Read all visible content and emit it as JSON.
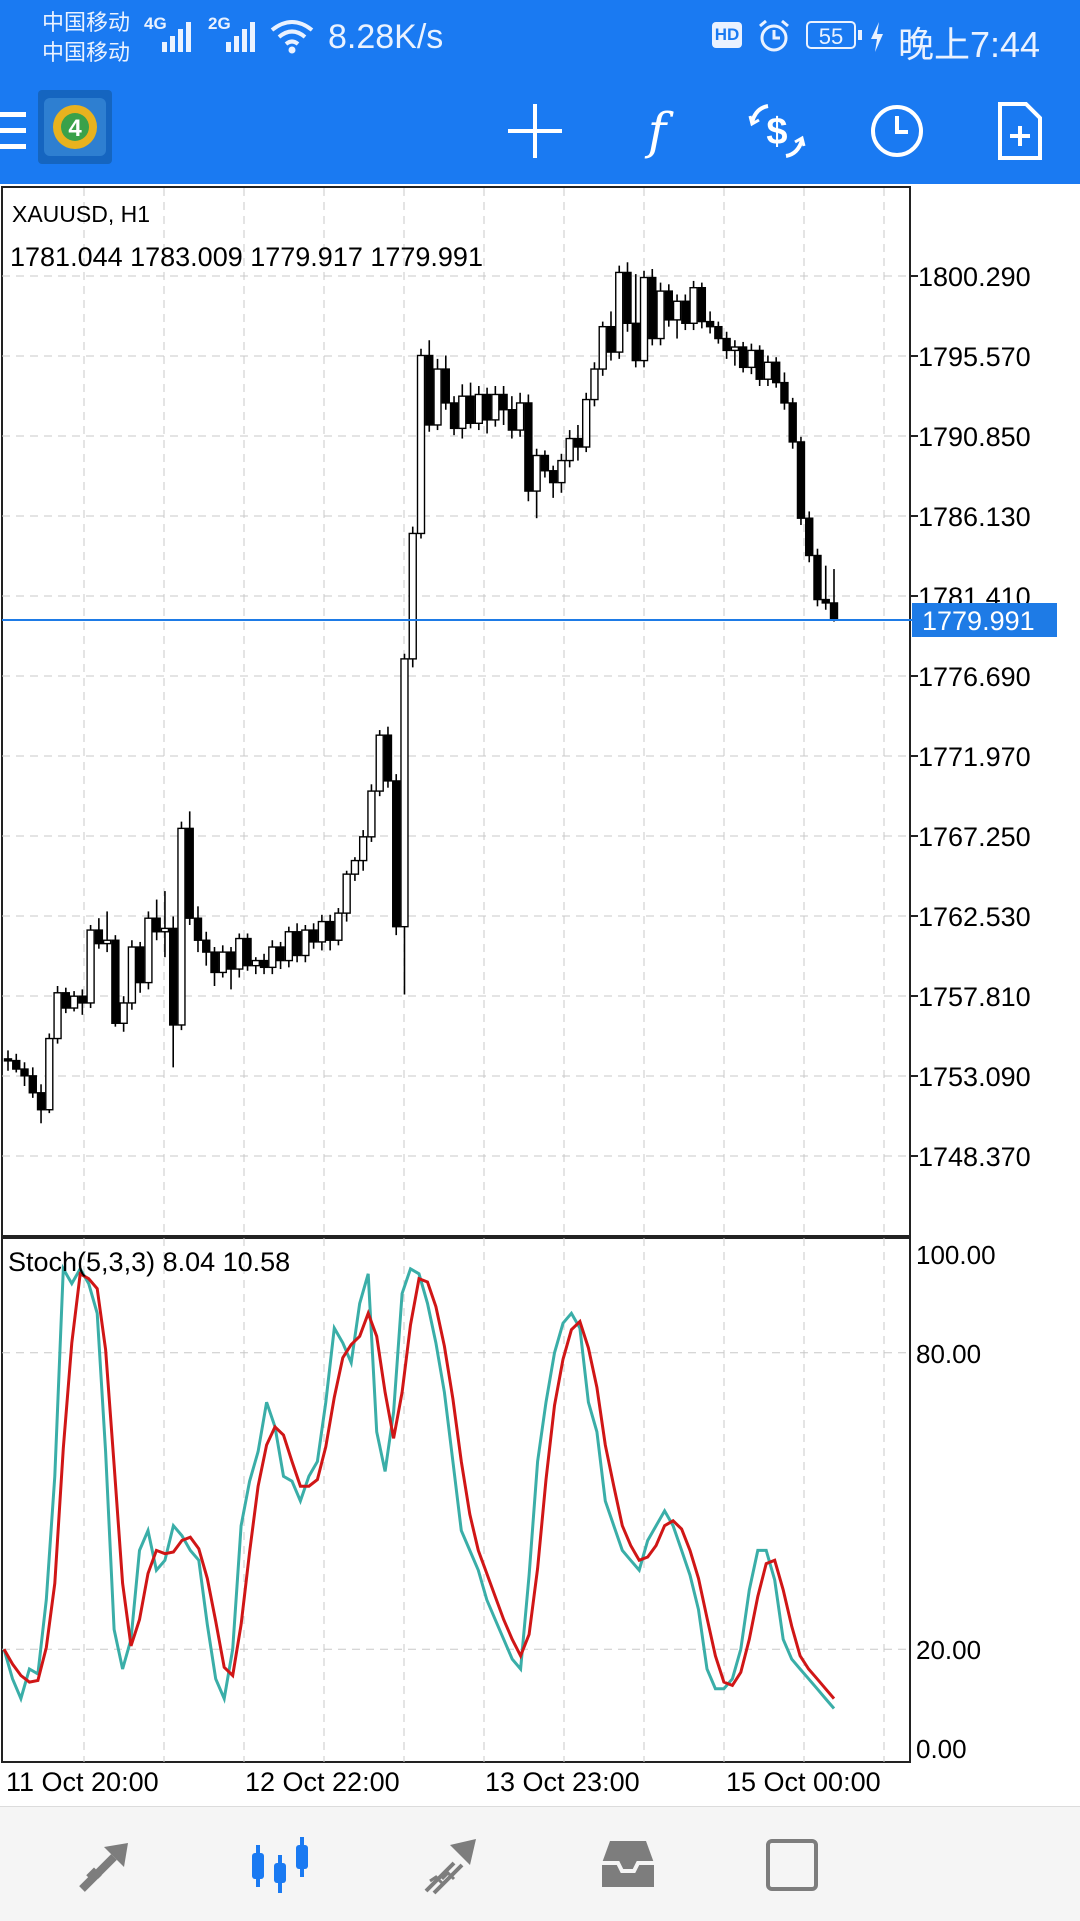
{
  "status_bar": {
    "carrier_1": "中国移动",
    "carrier_2": "中国移动",
    "signal_1": "4G",
    "signal_2": "2G",
    "net_speed": "8.28K/s",
    "hd_badge": "HD",
    "battery": "55",
    "time": "晚上7:44"
  },
  "toolbar": {
    "icons": [
      "menu-icon",
      "app-logo",
      "crosshair-icon",
      "function-icon",
      "trade-icon",
      "clock-icon",
      "new-document-icon"
    ]
  },
  "chart": {
    "symbol_label": "XAUUSD, H1",
    "ohlc_label": "1781.044 1783.009 1779.917 1779.991",
    "current_price": "1779.991",
    "price_ticks": [
      "1800.290",
      "1795.570",
      "1790.850",
      "1786.130",
      "1781.410",
      "1776.690",
      "1771.970",
      "1767.250",
      "1762.530",
      "1757.810",
      "1753.090",
      "1748.370"
    ],
    "indicator_label": "Stoch(5,3,3) 8.04 10.58",
    "stoch_ticks": [
      "100.00",
      "80.00",
      "20.00",
      "0.00"
    ],
    "time_labels": [
      "11 Oct 20:00",
      "12 Oct 22:00",
      "13 Oct 23:00",
      "15 Oct 00:00"
    ],
    "colors": {
      "up_down": "#000000",
      "price_line": "#1e7be6",
      "stoch_main": "#3aaea8",
      "stoch_signal": "#d01616"
    }
  },
  "chart_data": {
    "type": "candlestick",
    "symbol": "XAUUSD",
    "timeframe": "H1",
    "ylim": [
      1744,
      1804
    ],
    "candles": [
      [
        1754.1,
        1754.6,
        1753.4,
        1754.0
      ],
      [
        1754.0,
        1754.4,
        1753.3,
        1753.5
      ],
      [
        1753.5,
        1753.9,
        1752.5,
        1753.1
      ],
      [
        1753.1,
        1753.6,
        1751.8,
        1752.1
      ],
      [
        1752.1,
        1752.6,
        1750.3,
        1751.1
      ],
      [
        1751.1,
        1755.6,
        1750.9,
        1755.3
      ],
      [
        1755.3,
        1758.4,
        1755.0,
        1758.0
      ],
      [
        1758.0,
        1758.3,
        1756.8,
        1757.1
      ],
      [
        1757.1,
        1758.1,
        1756.9,
        1757.8
      ],
      [
        1757.8,
        1758.2,
        1756.7,
        1757.4
      ],
      [
        1757.4,
        1762.0,
        1757.1,
        1761.7
      ],
      [
        1761.7,
        1762.4,
        1760.6,
        1760.9
      ],
      [
        1760.9,
        1762.8,
        1760.4,
        1761.1
      ],
      [
        1761.1,
        1761.4,
        1756.0,
        1756.2
      ],
      [
        1756.2,
        1757.8,
        1755.7,
        1757.4
      ],
      [
        1757.4,
        1761.1,
        1757.0,
        1760.7
      ],
      [
        1760.7,
        1761.0,
        1758.0,
        1758.6
      ],
      [
        1758.6,
        1762.8,
        1758.2,
        1762.4
      ],
      [
        1762.4,
        1763.5,
        1761.1,
        1761.6
      ],
      [
        1761.6,
        1764.0,
        1760.1,
        1761.8
      ],
      [
        1761.8,
        1762.5,
        1753.6,
        1756.1
      ],
      [
        1756.1,
        1768.1,
        1755.8,
        1767.7
      ],
      [
        1767.7,
        1768.7,
        1762.0,
        1762.4
      ],
      [
        1762.4,
        1763.1,
        1760.4,
        1761.1
      ],
      [
        1761.1,
        1761.6,
        1759.6,
        1760.4
      ],
      [
        1760.4,
        1760.7,
        1758.4,
        1759.2
      ],
      [
        1759.2,
        1760.8,
        1758.9,
        1760.4
      ],
      [
        1760.4,
        1760.7,
        1758.2,
        1759.4
      ],
      [
        1759.4,
        1761.5,
        1758.9,
        1761.2
      ],
      [
        1761.2,
        1761.5,
        1759.3,
        1759.6
      ],
      [
        1759.6,
        1760.1,
        1759.1,
        1759.9
      ],
      [
        1759.9,
        1760.3,
        1759.1,
        1759.5
      ],
      [
        1759.5,
        1761.1,
        1759.1,
        1760.7
      ],
      [
        1760.7,
        1761.0,
        1759.4,
        1759.9
      ],
      [
        1759.9,
        1761.9,
        1759.5,
        1761.6
      ],
      [
        1761.6,
        1762.1,
        1759.8,
        1760.2
      ],
      [
        1760.2,
        1762.0,
        1759.8,
        1761.7
      ],
      [
        1761.7,
        1762.1,
        1760.6,
        1761.0
      ],
      [
        1761.0,
        1762.6,
        1760.5,
        1762.2
      ],
      [
        1762.2,
        1762.6,
        1760.5,
        1761.1
      ],
      [
        1761.1,
        1763.0,
        1760.8,
        1762.7
      ],
      [
        1762.7,
        1765.2,
        1762.2,
        1765.0
      ],
      [
        1765.0,
        1766.0,
        1764.6,
        1765.8
      ],
      [
        1765.8,
        1767.6,
        1765.2,
        1767.2
      ],
      [
        1767.2,
        1770.3,
        1766.9,
        1769.9
      ],
      [
        1769.9,
        1773.5,
        1769.6,
        1773.2
      ],
      [
        1773.2,
        1773.7,
        1770.1,
        1770.5
      ],
      [
        1770.5,
        1770.9,
        1761.4,
        1761.9
      ],
      [
        1761.9,
        1778.0,
        1757.9,
        1777.7
      ],
      [
        1777.7,
        1785.5,
        1777.2,
        1785.1
      ],
      [
        1785.1,
        1796.0,
        1784.8,
        1795.6
      ],
      [
        1795.6,
        1796.5,
        1791.1,
        1791.5
      ],
      [
        1791.5,
        1795.4,
        1791.2,
        1794.8
      ],
      [
        1794.8,
        1795.6,
        1792.4,
        1792.8
      ],
      [
        1792.8,
        1793.2,
        1790.9,
        1791.3
      ],
      [
        1791.3,
        1793.9,
        1790.7,
        1793.2
      ],
      [
        1793.2,
        1794.0,
        1791.3,
        1791.6
      ],
      [
        1791.6,
        1793.8,
        1791.2,
        1793.3
      ],
      [
        1793.3,
        1793.7,
        1791.0,
        1791.8
      ],
      [
        1791.8,
        1793.8,
        1791.4,
        1793.3
      ],
      [
        1793.3,
        1793.8,
        1791.5,
        1792.4
      ],
      [
        1792.4,
        1793.2,
        1790.7,
        1791.2
      ],
      [
        1791.2,
        1793.4,
        1790.8,
        1792.8
      ],
      [
        1792.8,
        1793.3,
        1787.0,
        1787.6
      ],
      [
        1787.6,
        1790.1,
        1786.0,
        1789.7
      ],
      [
        1789.7,
        1790.0,
        1788.4,
        1788.8
      ],
      [
        1788.8,
        1789.1,
        1787.2,
        1788.1
      ],
      [
        1788.1,
        1789.8,
        1787.5,
        1789.4
      ],
      [
        1789.4,
        1791.2,
        1789.0,
        1790.7
      ],
      [
        1790.7,
        1791.5,
        1789.4,
        1790.2
      ],
      [
        1790.2,
        1793.4,
        1789.9,
        1793.0
      ],
      [
        1793.0,
        1795.2,
        1792.6,
        1794.8
      ],
      [
        1794.8,
        1797.6,
        1794.4,
        1797.3
      ],
      [
        1797.3,
        1798.2,
        1795.3,
        1795.8
      ],
      [
        1795.8,
        1800.9,
        1795.4,
        1800.5
      ],
      [
        1800.5,
        1801.1,
        1797.0,
        1797.5
      ],
      [
        1797.5,
        1800.4,
        1794.9,
        1795.3
      ],
      [
        1795.3,
        1800.6,
        1794.9,
        1800.2
      ],
      [
        1800.2,
        1800.7,
        1796.2,
        1796.6
      ],
      [
        1796.6,
        1799.9,
        1796.2,
        1799.4
      ],
      [
        1799.4,
        1799.8,
        1797.3,
        1797.7
      ],
      [
        1797.7,
        1799.2,
        1796.6,
        1798.8
      ],
      [
        1798.8,
        1799.2,
        1797.1,
        1797.5
      ],
      [
        1797.5,
        1800.0,
        1797.1,
        1799.6
      ],
      [
        1799.6,
        1799.9,
        1797.2,
        1797.6
      ],
      [
        1797.6,
        1798.2,
        1796.9,
        1797.3
      ],
      [
        1797.3,
        1797.6,
        1796.3,
        1796.6
      ],
      [
        1796.6,
        1797.0,
        1795.4,
        1795.9
      ],
      [
        1795.9,
        1796.5,
        1795.0,
        1796.1
      ],
      [
        1796.1,
        1796.4,
        1794.6,
        1794.9
      ],
      [
        1794.9,
        1796.3,
        1794.5,
        1795.9
      ],
      [
        1795.9,
        1796.2,
        1793.8,
        1794.2
      ],
      [
        1794.2,
        1795.6,
        1793.8,
        1795.2
      ],
      [
        1795.2,
        1795.5,
        1793.7,
        1794.0
      ],
      [
        1794.0,
        1794.6,
        1792.4,
        1792.8
      ],
      [
        1792.8,
        1793.1,
        1790.1,
        1790.5
      ],
      [
        1790.5,
        1790.8,
        1785.6,
        1786.0
      ],
      [
        1786.0,
        1786.4,
        1783.4,
        1783.8
      ],
      [
        1783.8,
        1784.2,
        1780.8,
        1781.2
      ],
      [
        1781.2,
        1783.2,
        1780.6,
        1781.0
      ],
      [
        1781.0,
        1783.0,
        1779.9,
        1779.991
      ]
    ],
    "stoch_main": [
      20,
      14,
      10,
      16,
      15,
      30,
      55,
      97,
      94,
      97,
      94,
      88,
      60,
      24,
      16,
      22,
      40,
      44,
      36,
      38,
      45,
      43,
      40,
      38,
      25,
      14,
      10,
      20,
      45,
      54,
      60,
      70,
      65,
      55,
      54,
      50,
      55,
      58,
      70,
      85,
      82,
      78,
      90,
      96,
      64,
      56,
      68,
      92,
      97,
      96,
      90,
      82,
      72,
      58,
      44,
      40,
      36,
      30,
      26,
      22,
      18,
      16,
      35,
      58,
      70,
      80,
      86,
      88,
      85,
      70,
      64,
      50,
      45,
      40,
      38,
      36,
      42,
      45,
      48,
      45,
      40,
      35,
      28,
      16,
      12,
      12,
      14,
      20,
      32,
      40,
      40,
      34,
      22,
      18,
      16,
      14,
      12,
      10,
      8
    ]
  }
}
